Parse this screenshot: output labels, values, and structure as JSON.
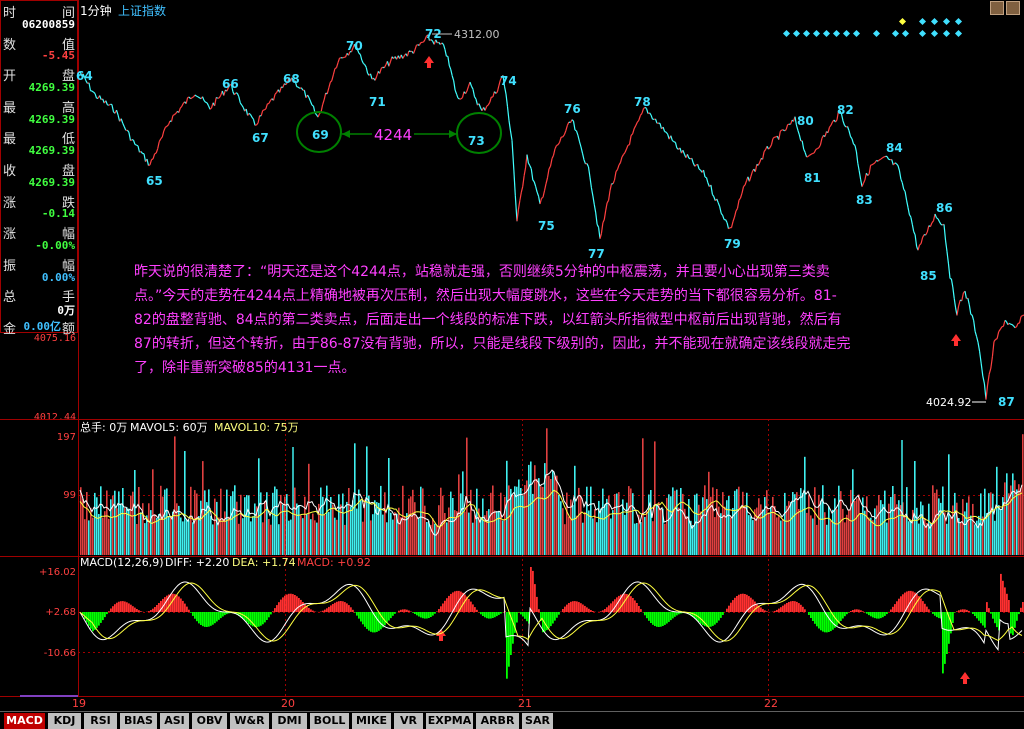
{
  "header": {
    "period": "1分钟",
    "index_name": "上证指数"
  },
  "info_panel": {
    "rows": [
      {
        "label": "时",
        "label_right": "间",
        "value": "",
        "color": "#e0e0e0"
      },
      {
        "label": "",
        "label_right": "",
        "value": "06200859",
        "color": "#ffffff"
      },
      {
        "label": "数",
        "label_right": "值",
        "value": "",
        "color": "#e0e0e0"
      },
      {
        "label": "",
        "label_right": "",
        "value": "-5.45",
        "color": "#ff4040"
      },
      {
        "label": "开",
        "label_right": "盘",
        "value": "",
        "color": "#e0e0e0"
      },
      {
        "label": "",
        "label_right": "",
        "value": "4269.39",
        "color": "#40ff40"
      },
      {
        "label": "最",
        "label_right": "高",
        "value": "",
        "color": "#e0e0e0"
      },
      {
        "label": "",
        "label_right": "",
        "value": "4269.39",
        "color": "#40ff40"
      },
      {
        "label": "最",
        "label_right": "低",
        "value": "",
        "color": "#e0e0e0"
      },
      {
        "label": "",
        "label_right": "",
        "value": "4269.39",
        "color": "#40ff40"
      },
      {
        "label": "收",
        "label_right": "盘",
        "value": "",
        "color": "#e0e0e0"
      },
      {
        "label": "",
        "label_right": "",
        "value": "4269.39",
        "color": "#40ff40"
      },
      {
        "label": "涨",
        "label_right": "跌",
        "value": "",
        "color": "#e0e0e0"
      },
      {
        "label": "",
        "label_right": "",
        "value": "-0.14",
        "color": "#40ff40"
      },
      {
        "label": "涨",
        "label_right": "幅",
        "value": "",
        "color": "#e0e0e0"
      },
      {
        "label": "",
        "label_right": "",
        "value": "-0.00%",
        "color": "#40ff40"
      },
      {
        "label": "振",
        "label_right": "幅",
        "value": "",
        "color": "#e0e0e0"
      },
      {
        "label": "",
        "label_right": "",
        "value": "0.00%",
        "color": "#40c0ff"
      },
      {
        "label": "总",
        "label_right": "手",
        "value": "",
        "color": "#e0e0e0"
      },
      {
        "label": "",
        "label_right": "",
        "value": "0万",
        "color": "#ffffff"
      },
      {
        "label": "金",
        "label_right": "额",
        "value": "0.00亿",
        "color": "#40c0ff"
      }
    ]
  },
  "price_axis": {
    "low_label": "4075.16",
    "bottom_label": "4012.44"
  },
  "annotations": {
    "max_price_label": "4312.00",
    "min_price_label": "4024.92",
    "level_label": "4244",
    "points": [
      {
        "id": "64",
        "text": "64"
      },
      {
        "id": "65",
        "text": "65"
      },
      {
        "id": "66",
        "text": "66"
      },
      {
        "id": "67",
        "text": "67"
      },
      {
        "id": "68",
        "text": "68"
      },
      {
        "id": "69",
        "text": "69"
      },
      {
        "id": "70",
        "text": "70"
      },
      {
        "id": "71",
        "text": "71"
      },
      {
        "id": "72",
        "text": "72"
      },
      {
        "id": "73",
        "text": "73"
      },
      {
        "id": "74",
        "text": "74"
      },
      {
        "id": "75",
        "text": "75"
      },
      {
        "id": "76",
        "text": "76"
      },
      {
        "id": "77",
        "text": "77"
      },
      {
        "id": "78",
        "text": "78"
      },
      {
        "id": "79",
        "text": "79"
      },
      {
        "id": "80",
        "text": "80"
      },
      {
        "id": "81",
        "text": "81"
      },
      {
        "id": "82",
        "text": "82"
      },
      {
        "id": "83",
        "text": "83"
      },
      {
        "id": "84",
        "text": "84"
      },
      {
        "id": "85",
        "text": "85"
      },
      {
        "id": "86",
        "text": "86"
      },
      {
        "id": "87",
        "text": "87"
      }
    ]
  },
  "commentary": "昨天说的很清楚了：“明天还是这个4244点，站稳就走强，否则继续5分钟的中枢震荡，并且要小心出现第三类卖点。”今天的走势在4244点上精确地被再次压制，然后出现大幅度跳水，这些在今天走势的当下都很容易分析。81-82的盘整背驰、84点的第二类卖点，后面走出一个线段的标准下跌，以红箭头所指微型中枢前后出现背驰，然后有87的转折，但这个转折，由于86-87没有背驰，所以，只能是线段下级别的，因此，并不能现在就确定该线段就走完了，除非重新突破85的4131一点。",
  "volume_panel": {
    "title": "总手: 0万",
    "ma5_label": "MAVOL5: 60万",
    "ma10_label": "MAVOL10: 75万",
    "axis_top": "197",
    "axis_mid": "99"
  },
  "macd_panel": {
    "title": "MACD(12,26,9)",
    "diff_label": "DIFF: +2.20",
    "dea_label": "DEA: +1.74",
    "macd_label": "MACD: +0.92",
    "axis_top": "+16.02",
    "axis_mid": "+2.68",
    "axis_low": "-10.66"
  },
  "date_axis": [
    "19",
    "20",
    "21",
    "22"
  ],
  "tabs": [
    {
      "label": "MACD",
      "active": true
    },
    {
      "label": "KDJ"
    },
    {
      "label": "RSI"
    },
    {
      "label": "BIAS"
    },
    {
      "label": "ASI"
    },
    {
      "label": "OBV"
    },
    {
      "label": "W&R"
    },
    {
      "label": "DMI"
    },
    {
      "label": "BOLL"
    },
    {
      "label": "MIKE"
    },
    {
      "label": "VR"
    },
    {
      "label": "EXPMA"
    },
    {
      "label": "ARBR"
    },
    {
      "label": "SAR"
    }
  ],
  "colors": {
    "price_line": "#40e0ff",
    "up_color": "#ff4040",
    "down_color": "#40ffff",
    "grid": "#a00000",
    "label_cyan": "#40e0ff",
    "magenta": "#ff40ff",
    "circle_green": "#008000",
    "macd_up": "#ff3030",
    "macd_down": "#00ff00"
  }
}
